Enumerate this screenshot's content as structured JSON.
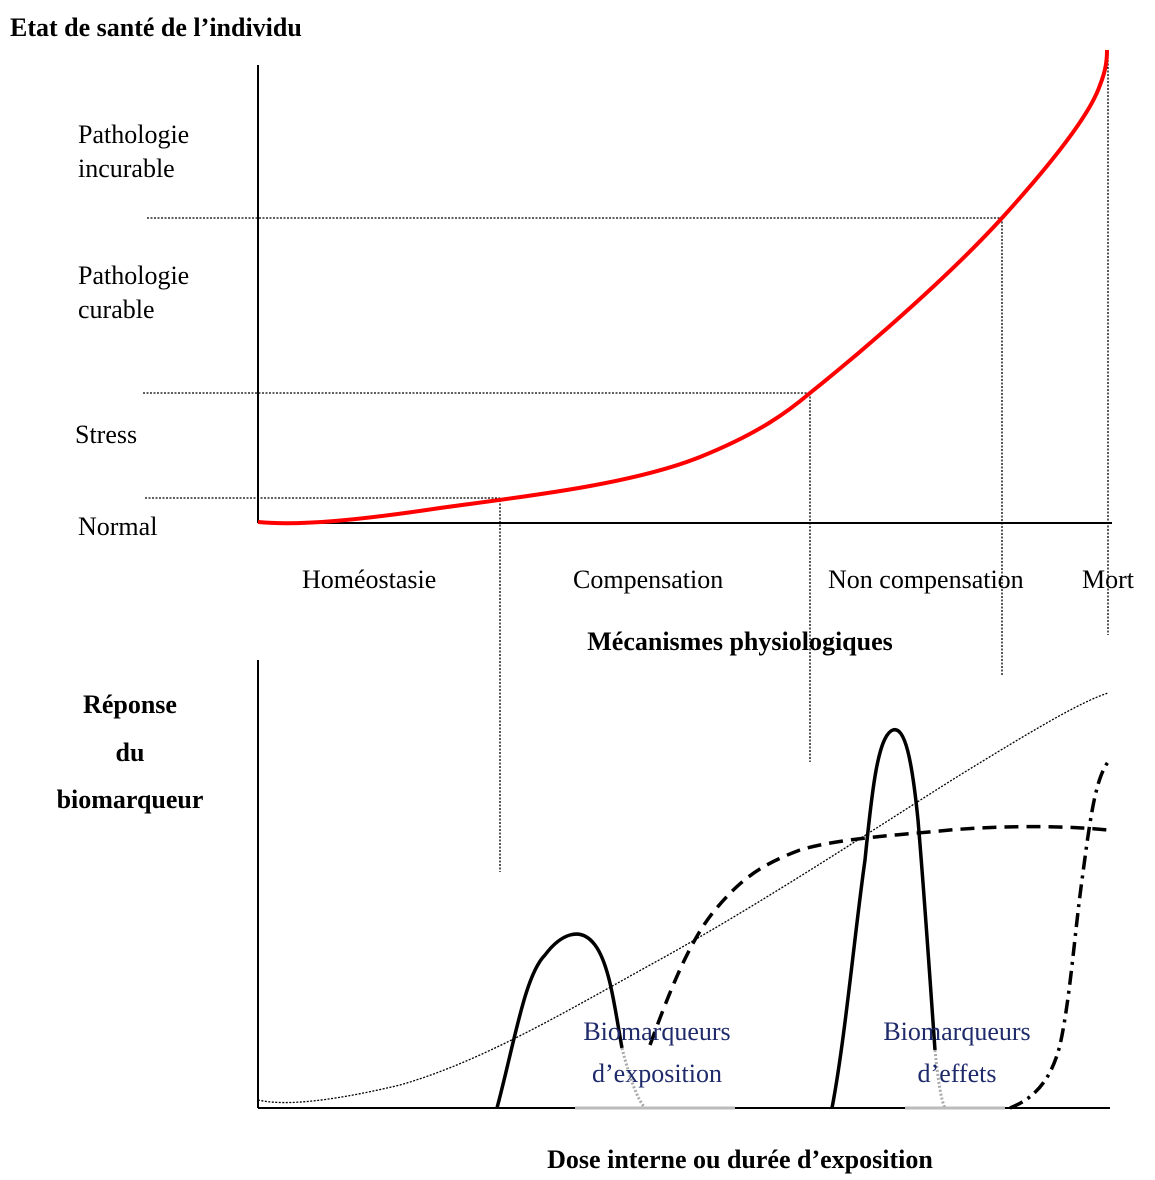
{
  "title": "Etat de santé de l’individu",
  "levels": [
    [
      "Pathologie",
      "incurable"
    ],
    [
      "Pathologie",
      "curable"
    ],
    [
      "Stress"
    ],
    [
      "Normal"
    ]
  ],
  "phases": [
    "Homéostasie",
    "Compensation",
    "Non compensation",
    "Mort"
  ],
  "phases_axis_label": "Mécanismes physiologiques",
  "response_label": [
    "Réponse",
    "du",
    "biomarqueur"
  ],
  "exposure_label": [
    "Biomarqueurs",
    "d’exposition"
  ],
  "effects_label": [
    "Biomarqueurs",
    "d’effets"
  ],
  "x_axis_label": "Dose interne ou durée d’exposition"
}
